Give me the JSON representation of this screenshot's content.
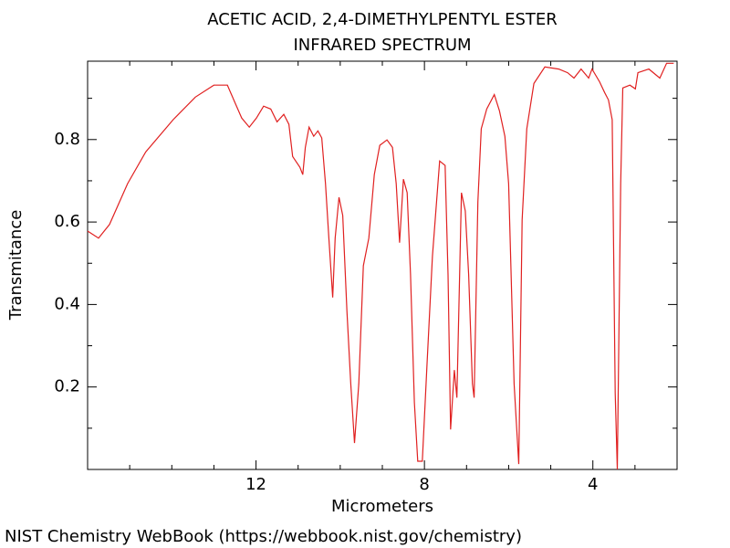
{
  "chart_data": {
    "type": "line",
    "title": "ACETIC ACID, 2,4-DIMETHYLPENTYL ESTER",
    "subtitle": "INFRARED SPECTRUM",
    "x_label": "Micrometers",
    "y_label": "Transmitance",
    "footer": "NIST Chemistry WebBook (https://webbook.nist.gov/chemistry)",
    "xlim": [
      16,
      2
    ],
    "ylim": [
      0,
      0.99
    ],
    "xticks": [
      12,
      8,
      4
    ],
    "xminorticks": [
      15,
      14,
      13,
      11,
      10,
      9,
      7,
      6,
      5,
      3
    ],
    "yticks": [
      0.2,
      0.4,
      0.6,
      0.8
    ],
    "yminorticks": [
      0.1,
      0.3,
      0.5,
      0.7,
      0.9
    ],
    "series": [
      {
        "name": "Transmitance",
        "color": "#e02020",
        "x": [
          16.0,
          15.74,
          15.48,
          15.05,
          14.62,
          13.97,
          13.44,
          13.0,
          12.68,
          12.51,
          12.34,
          12.16,
          11.99,
          11.82,
          11.65,
          11.5,
          11.34,
          11.22,
          11.13,
          10.96,
          10.89,
          10.83,
          10.74,
          10.63,
          10.53,
          10.44,
          10.35,
          10.27,
          10.18,
          10.12,
          10.03,
          9.94,
          9.84,
          9.75,
          9.66,
          9.56,
          9.45,
          9.32,
          9.19,
          9.06,
          8.89,
          8.76,
          8.67,
          8.59,
          8.5,
          8.41,
          8.33,
          8.24,
          8.16,
          8.05,
          7.94,
          7.81,
          7.64,
          7.51,
          7.44,
          7.38,
          7.29,
          7.23,
          7.12,
          7.03,
          6.95,
          6.86,
          6.82,
          6.73,
          6.65,
          6.52,
          6.34,
          6.22,
          6.09,
          6.0,
          5.87,
          5.76,
          5.68,
          5.57,
          5.4,
          5.14,
          4.81,
          4.6,
          4.45,
          4.28,
          4.1,
          4.02,
          3.84,
          3.72,
          3.63,
          3.54,
          3.47,
          3.42,
          3.34,
          3.29,
          3.12,
          2.99,
          2.93,
          2.67,
          2.41,
          2.25,
          2.08
        ],
        "values": [
          0.578,
          0.561,
          0.594,
          0.693,
          0.77,
          0.848,
          0.903,
          0.932,
          0.932,
          0.892,
          0.852,
          0.83,
          0.852,
          0.881,
          0.874,
          0.843,
          0.861,
          0.837,
          0.759,
          0.733,
          0.715,
          0.781,
          0.83,
          0.808,
          0.821,
          0.804,
          0.693,
          0.561,
          0.417,
          0.561,
          0.66,
          0.616,
          0.384,
          0.208,
          0.064,
          0.208,
          0.494,
          0.561,
          0.715,
          0.786,
          0.799,
          0.781,
          0.693,
          0.55,
          0.704,
          0.671,
          0.472,
          0.163,
          0.02,
          0.02,
          0.252,
          0.517,
          0.748,
          0.737,
          0.472,
          0.097,
          0.241,
          0.174,
          0.671,
          0.627,
          0.472,
          0.208,
          0.174,
          0.649,
          0.826,
          0.874,
          0.909,
          0.87,
          0.808,
          0.693,
          0.208,
          0.013,
          0.605,
          0.826,
          0.936,
          0.976,
          0.971,
          0.962,
          0.949,
          0.971,
          0.949,
          0.971,
          0.94,
          0.914,
          0.896,
          0.848,
          0.185,
          0.0,
          0.693,
          0.925,
          0.932,
          0.923,
          0.962,
          0.971,
          0.949,
          0.985,
          0.985
        ]
      }
    ]
  }
}
